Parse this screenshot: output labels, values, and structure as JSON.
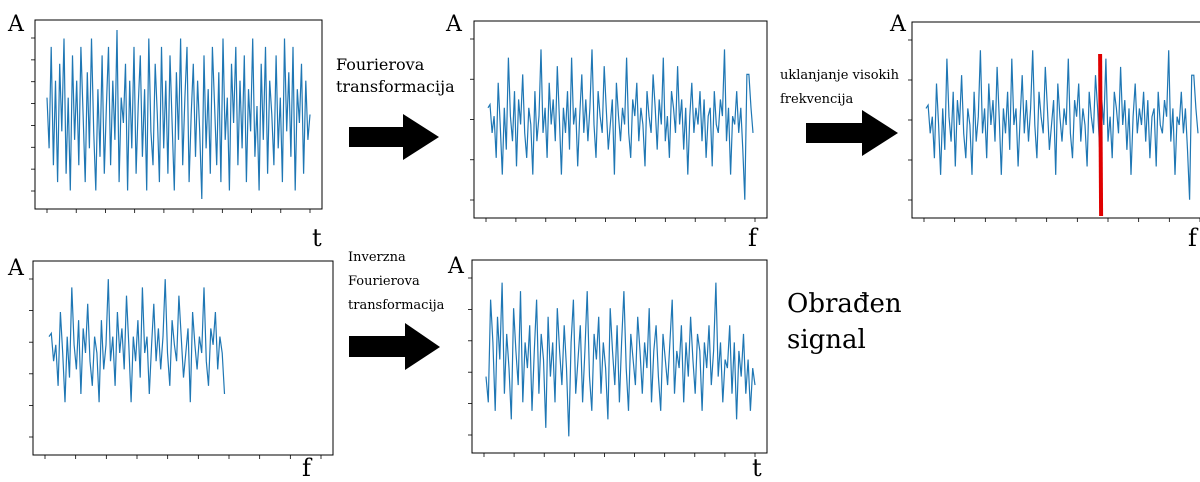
{
  "colors": {
    "signal": "#1f77b4",
    "cutoff": "#e00000",
    "arrow": "#000000",
    "frame": "#000000"
  },
  "axis_names": {
    "amplitude": "A",
    "time": "t",
    "frequency": "f"
  },
  "panels": [
    {
      "id": "p1",
      "ylabel": "A",
      "xlabel": "t",
      "xtick_count": 10,
      "ytick_count": 8
    },
    {
      "id": "p2",
      "ylabel": "A",
      "xlabel": "f",
      "xtick_count": 10,
      "ytick_count": 5
    },
    {
      "id": "p3",
      "ylabel": "A",
      "xlabel": "f",
      "xtick_count": 10,
      "ytick_count": 5
    },
    {
      "id": "p4",
      "ylabel": "A",
      "xlabel": "f",
      "xtick_count": 10,
      "ytick_count": 6
    },
    {
      "id": "p5",
      "ylabel": "A",
      "xlabel": "t",
      "xtick_count": 10,
      "ytick_count": 6
    }
  ],
  "steps": {
    "fourier": [
      "Fourierova",
      "transformacija"
    ],
    "remove_high": [
      "uklanjanje visokih",
      "frekvencija"
    ],
    "inverse": [
      "Inverzna",
      "Fourierova",
      "transformacija"
    ]
  },
  "result": [
    "Obrađen",
    "signal"
  ],
  "signals": {
    "raw": [
      0.6,
      0.3,
      0.9,
      0.2,
      0.7,
      0.1,
      0.8,
      0.4,
      0.95,
      0.15,
      0.6,
      0.05,
      0.85,
      0.35,
      0.7,
      0.2,
      0.9,
      0.5,
      0.1,
      0.75,
      0.3,
      0.95,
      0.4,
      0.05,
      0.65,
      0.25,
      0.85,
      0.15,
      0.55,
      0.9,
      0.2,
      0.7,
      0.35,
      1.0,
      0.1,
      0.6,
      0.45,
      0.8,
      0.05,
      0.7,
      0.3,
      0.9,
      0.15,
      0.55,
      0.85,
      0.25,
      0.65,
      0.05,
      0.95,
      0.4,
      0.2,
      0.8,
      0.5,
      0.1,
      0.9,
      0.3,
      0.7,
      0.15,
      0.85,
      0.45,
      0.05,
      0.75,
      0.35,
      0.95,
      0.2,
      0.6,
      0.9,
      0.1,
      0.5,
      0.8,
      0.25,
      0.7,
      0.4,
      0.0,
      0.85,
      0.3,
      0.65,
      0.15,
      0.9,
      0.55,
      0.2,
      0.75,
      0.1,
      0.95,
      0.35,
      0.6,
      0.05,
      0.8,
      0.45,
      0.9,
      0.2,
      0.7,
      0.3,
      0.85,
      0.1,
      0.65,
      0.4,
      0.95,
      0.25,
      0.55,
      0.05,
      0.8,
      0.35,
      0.9,
      0.15,
      0.7,
      0.5,
      0.2,
      0.85,
      0.3,
      0.6,
      0.1,
      0.95,
      0.4,
      0.75,
      0.25,
      0.9,
      0.05,
      0.65,
      0.45,
      0.8,
      0.15,
      0.7,
      0.35,
      0.5
    ],
    "spectrum": [
      0.6,
      0.62,
      0.45,
      0.55,
      0.3,
      0.75,
      0.5,
      0.2,
      0.6,
      0.35,
      0.9,
      0.55,
      0.4,
      0.7,
      0.25,
      0.65,
      0.5,
      0.8,
      0.45,
      0.3,
      0.6,
      0.5,
      0.2,
      0.7,
      0.4,
      0.55,
      0.95,
      0.45,
      0.6,
      0.3,
      0.75,
      0.5,
      0.65,
      0.4,
      0.85,
      0.55,
      0.2,
      0.6,
      0.45,
      0.7,
      0.35,
      0.9,
      0.5,
      0.6,
      0.25,
      0.55,
      0.8,
      0.45,
      0.65,
      0.4,
      0.6,
      0.95,
      0.5,
      0.3,
      0.7,
      0.55,
      0.45,
      0.85,
      0.6,
      0.35,
      0.5,
      0.65,
      0.2,
      0.75,
      0.55,
      0.4,
      0.6,
      0.5,
      0.9,
      0.45,
      0.3,
      0.65,
      0.55,
      0.75,
      0.4,
      0.6,
      0.5,
      0.25,
      0.7,
      0.55,
      0.45,
      0.8,
      0.6,
      0.35,
      0.65,
      0.5,
      0.9,
      0.4,
      0.55,
      0.3,
      0.7,
      0.6,
      0.45,
      0.85,
      0.5,
      0.65,
      0.35,
      0.6,
      0.2,
      0.55,
      0.75,
      0.45,
      0.6,
      0.5,
      0.7,
      0.4,
      0.65,
      0.3,
      0.55,
      0.6,
      0.25,
      0.7,
      0.5,
      0.45,
      0.65,
      0.55,
      0.95,
      0.4,
      0.6,
      0.2,
      0.55,
      0.5,
      0.7,
      0.45,
      0.6,
      0.35,
      0.05,
      0.8,
      0.8,
      0.6,
      0.45
    ],
    "filtered": [
      0.6,
      0.62,
      0.45,
      0.55,
      0.3,
      0.75,
      0.5,
      0.2,
      0.6,
      0.35,
      0.9,
      0.55,
      0.4,
      0.7,
      0.25,
      0.65,
      0.5,
      0.8,
      0.45,
      0.3,
      0.6,
      0.5,
      0.2,
      0.7,
      0.4,
      0.55,
      0.95,
      0.45,
      0.6,
      0.3,
      0.75,
      0.5,
      0.65,
      0.4,
      0.85,
      0.55,
      0.2,
      0.6,
      0.45,
      0.7,
      0.35,
      0.9,
      0.5,
      0.6,
      0.25,
      0.55,
      0.8,
      0.45,
      0.65,
      0.4,
      0.6,
      0.95,
      0.5,
      0.3,
      0.7,
      0.55,
      0.45,
      0.85,
      0.6,
      0.35,
      0.5,
      0.65,
      0.2,
      0.75,
      0.55,
      0.4,
      0.6,
      0.5,
      0.9,
      0.45,
      0.3,
      0.65,
      0.55,
      0.75,
      0.4,
      0.6,
      0.5,
      0.25
    ],
    "reconstructed": [
      0.4,
      0.25,
      0.85,
      0.6,
      0.2,
      0.75,
      0.5,
      0.95,
      0.3,
      0.65,
      0.45,
      0.15,
      0.8,
      0.55,
      0.35,
      0.9,
      0.25,
      0.6,
      0.45,
      0.7,
      0.2,
      0.55,
      0.85,
      0.3,
      0.65,
      0.5,
      0.1,
      0.75,
      0.4,
      0.6,
      0.25,
      0.8,
      0.55,
      0.35,
      0.7,
      0.45,
      0.05,
      0.6,
      0.85,
      0.3,
      0.5,
      0.7,
      0.25,
      0.55,
      0.9,
      0.4,
      0.2,
      0.65,
      0.5,
      0.75,
      0.3,
      0.6,
      0.45,
      0.15,
      0.8,
      0.55,
      0.35,
      0.7,
      0.25,
      0.6,
      0.9,
      0.45,
      0.2,
      0.65,
      0.5,
      0.35,
      0.75,
      0.55,
      0.3,
      0.6,
      0.45,
      0.8,
      0.25,
      0.55,
      0.7,
      0.4,
      0.2,
      0.65,
      0.5,
      0.35,
      0.6,
      0.85,
      0.3,
      0.55,
      0.45,
      0.7,
      0.25,
      0.6,
      0.4,
      0.75,
      0.5,
      0.3,
      0.65,
      0.55,
      0.2,
      0.6,
      0.45,
      0.7,
      0.35,
      0.55,
      0.95,
      0.4,
      0.6,
      0.25,
      0.5,
      0.45,
      0.7,
      0.3,
      0.6,
      0.15,
      0.55,
      0.4,
      0.65,
      0.3,
      0.5,
      0.2,
      0.45,
      0.35
    ]
  },
  "panel_signals": {
    "p1": "raw",
    "p2": "spectrum",
    "p3": "spectrum",
    "p4": "filtered",
    "p5": "reconstructed"
  },
  "cutoff_panel": "p3",
  "cutoff_fraction": 0.64,
  "filtered_extent_fraction": 0.65
}
